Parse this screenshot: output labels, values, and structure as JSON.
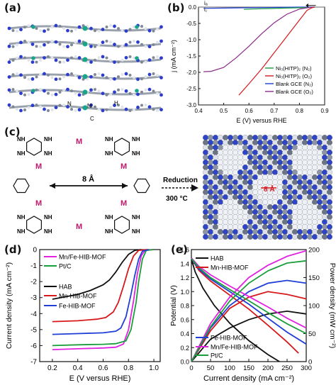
{
  "panel_labels": {
    "a": "(a)",
    "b": "(b)",
    "c": "(c)",
    "d": "(d)",
    "e": "(e)"
  },
  "panel_a": {
    "atoms": {
      "ni": "Ni",
      "n": "N",
      "h": "H",
      "c": "C"
    }
  },
  "panel_c": {
    "reduction_label": "Reduction",
    "temperature_label": "300 °C",
    "pore_size_label": "8 Å",
    "mof_pore_label": "8 Å",
    "metal_label": "M",
    "amine_label": "NH"
  },
  "colors": {
    "black": "#111111",
    "red": "#d7191c",
    "blue": "#1f3fd6",
    "magenta": "#e023e0",
    "green": "#1a9e3c",
    "teal": "#1a8c7a",
    "purple": "#8a2a8a",
    "navy": "#1a237e",
    "metal": "#c2186c"
  },
  "chart_data": [
    {
      "id": "b",
      "type": "line",
      "xlabel": "E (V) versus RHE",
      "ylabel": "j (mA cm⁻²)",
      "xlim": [
        0.4,
        0.9
      ],
      "ylim": [
        -3.0,
        0.0
      ],
      "xticks": [
        "0.4",
        "0.5",
        "0.6",
        "0.7",
        "0.8",
        "0.9"
      ],
      "yticks": [
        "0.0",
        "-0.5",
        "-1.0",
        "-1.5",
        "-2.0",
        "-2.5",
        "-3.0"
      ],
      "annotations": {
        "ia": "iₐ",
        "ic": "i꜀"
      },
      "legend_position": "bottom-right",
      "series": [
        {
          "name": "Ni₃(HITP)₂ (N₂)",
          "color": "#1a9e3c",
          "x": [
            0.58,
            0.65,
            0.75,
            0.84,
            0.86
          ],
          "y": [
            -0.07,
            -0.05,
            -0.03,
            -0.01,
            0.0
          ]
        },
        {
          "name": "Ni₃(HITP)₂ (O₂)",
          "color": "#d7191c",
          "x": [
            0.56,
            0.6,
            0.65,
            0.7,
            0.75,
            0.8,
            0.83,
            0.85,
            0.86
          ],
          "y": [
            -2.7,
            -2.35,
            -1.9,
            -1.4,
            -0.9,
            -0.4,
            -0.1,
            -0.02,
            0.0
          ]
        },
        {
          "name": "Blank GCE (N₂)",
          "color": "#1f3fd6",
          "x": [
            0.42,
            0.5,
            0.6,
            0.7,
            0.8,
            0.86
          ],
          "y": [
            -0.04,
            -0.03,
            -0.02,
            -0.01,
            0.0,
            0.0
          ]
        },
        {
          "name": "Blank GCE (O₂)",
          "color": "#8a2a8a",
          "x": [
            0.42,
            0.45,
            0.5,
            0.55,
            0.6,
            0.65,
            0.7,
            0.75,
            0.8,
            0.84,
            0.86
          ],
          "y": [
            -1.98,
            -1.97,
            -1.85,
            -1.55,
            -1.2,
            -0.82,
            -0.48,
            -0.22,
            -0.06,
            -0.01,
            0.0
          ]
        }
      ]
    },
    {
      "id": "d",
      "type": "line",
      "xlabel": "E (V versus RHE)",
      "ylabel": "Current density (mA cm⁻²)",
      "xlim": [
        0.1,
        1.05
      ],
      "ylim": [
        -7,
        0
      ],
      "xticks": [
        "0.2",
        "0.4",
        "0.6",
        "0.8",
        "1.0"
      ],
      "yticks": [
        "0",
        "-1",
        "-2",
        "-3",
        "-4",
        "-5",
        "-6",
        "-7"
      ],
      "legend_position": "top-left and middle-left",
      "series": [
        {
          "name": "Mn/Fe-HIB-MOF",
          "color": "#e023e0",
          "x": [
            0.2,
            0.4,
            0.6,
            0.7,
            0.76,
            0.8,
            0.84,
            0.87,
            0.9,
            0.93,
            1.0
          ],
          "y": [
            -6.25,
            -6.2,
            -6.15,
            -6.1,
            -5.9,
            -5.0,
            -3.2,
            -1.5,
            -0.4,
            -0.05,
            0.0
          ]
        },
        {
          "name": "Pt/C",
          "color": "#1a9e3c",
          "x": [
            0.2,
            0.4,
            0.6,
            0.7,
            0.78,
            0.82,
            0.86,
            0.88,
            0.91,
            0.94,
            1.0
          ],
          "y": [
            -6.0,
            -5.95,
            -5.92,
            -5.88,
            -5.7,
            -5.0,
            -3.3,
            -2.0,
            -0.6,
            -0.05,
            0.0
          ]
        },
        {
          "name": "HAB",
          "color": "#111111",
          "x": [
            0.2,
            0.3,
            0.4,
            0.5,
            0.6,
            0.65,
            0.7,
            0.75,
            0.8,
            0.85,
            0.9
          ],
          "y": [
            -3.1,
            -2.95,
            -2.8,
            -2.55,
            -2.2,
            -1.9,
            -1.4,
            -0.8,
            -0.3,
            -0.05,
            0.0
          ]
        },
        {
          "name": "Mn-HIB-MOF",
          "color": "#d7191c",
          "x": [
            0.2,
            0.4,
            0.55,
            0.62,
            0.68,
            0.72,
            0.76,
            0.8,
            0.84,
            0.88,
            0.95
          ],
          "y": [
            -4.5,
            -4.45,
            -4.35,
            -4.25,
            -3.9,
            -3.3,
            -2.3,
            -1.2,
            -0.4,
            -0.05,
            0.0
          ]
        },
        {
          "name": "Fe-HIB-MOF",
          "color": "#1f3fd6",
          "x": [
            0.2,
            0.4,
            0.6,
            0.7,
            0.74,
            0.78,
            0.82,
            0.85,
            0.88,
            0.91,
            0.96
          ],
          "y": [
            -5.3,
            -5.25,
            -5.2,
            -5.1,
            -4.9,
            -4.2,
            -2.8,
            -1.6,
            -0.6,
            -0.1,
            0.0
          ]
        }
      ]
    },
    {
      "id": "e",
      "type": "line",
      "xlabel": "Current density (mA cm⁻²)",
      "ylabel": "Potential (V)",
      "y2label": "Power density (mW cm⁻²)",
      "xlim": [
        0,
        300
      ],
      "ylim": [
        0,
        1.6
      ],
      "y2lim": [
        0,
        200
      ],
      "xticks": [
        "0",
        "50",
        "100",
        "150",
        "200",
        "250",
        "300"
      ],
      "yticks": [
        "0.0",
        "0.2",
        "0.4",
        "0.6",
        "0.8",
        "1.0",
        "1.2",
        "1.4",
        "1.6"
      ],
      "y2ticks": [
        "0",
        "50",
        "100",
        "150",
        "200"
      ],
      "legend_position": "top-left and bottom-left",
      "series": [
        {
          "name": "HAB",
          "color": "#111111",
          "kind": "polarization",
          "x": [
            0,
            10,
            30,
            60,
            100,
            150,
            200,
            230
          ],
          "y": [
            1.46,
            1.28,
            1.05,
            0.8,
            0.55,
            0.3,
            0.1,
            0.0
          ]
        },
        {
          "name": "HAB",
          "color": "#111111",
          "kind": "power",
          "x": [
            0,
            50,
            100,
            150,
            200,
            250,
            300
          ],
          "y2": [
            0,
            40,
            60,
            75,
            85,
            90,
            85
          ]
        },
        {
          "name": "Mn-HIB-MOF",
          "color": "#d7191c",
          "kind": "polarization",
          "x": [
            0,
            20,
            50,
            100,
            150,
            200,
            250,
            280
          ],
          "y": [
            1.47,
            1.3,
            1.15,
            0.95,
            0.75,
            0.52,
            0.28,
            0.12
          ]
        },
        {
          "name": "Mn-HIB-MOF",
          "color": "#d7191c",
          "kind": "power",
          "x": [
            0,
            50,
            100,
            150,
            200,
            250,
            300
          ],
          "y2": [
            0,
            55,
            95,
            115,
            125,
            120,
            112
          ]
        },
        {
          "name": "Fe-HIB-MOF",
          "color": "#1f3fd6",
          "kind": "polarization",
          "x": [
            0,
            20,
            50,
            100,
            150,
            200,
            250,
            300
          ],
          "y": [
            1.47,
            1.32,
            1.18,
            1.0,
            0.82,
            0.62,
            0.42,
            0.25
          ]
        },
        {
          "name": "Fe-HIB-MOF",
          "color": "#1f3fd6",
          "kind": "power",
          "x": [
            0,
            50,
            100,
            150,
            200,
            250,
            300
          ],
          "y2": [
            0,
            60,
            100,
            125,
            140,
            145,
            140
          ]
        },
        {
          "name": "Mn/Fe-HIB-MOF",
          "color": "#e023e0",
          "kind": "polarization",
          "x": [
            0,
            20,
            50,
            100,
            150,
            200,
            250,
            300
          ],
          "y": [
            1.48,
            1.36,
            1.24,
            1.08,
            0.93,
            0.78,
            0.62,
            0.48
          ]
        },
        {
          "name": "Mn/Fe-HIB-MOF",
          "color": "#e023e0",
          "kind": "power",
          "x": [
            0,
            50,
            100,
            150,
            200,
            250,
            300
          ],
          "y2": [
            0,
            68,
            115,
            150,
            172,
            188,
            198
          ]
        },
        {
          "name": "Pt/C",
          "color": "#1a9e3c",
          "kind": "polarization",
          "x": [
            0,
            20,
            50,
            100,
            150,
            200,
            250,
            300
          ],
          "y": [
            1.47,
            1.34,
            1.2,
            1.03,
            0.87,
            0.7,
            0.54,
            0.4
          ]
        },
        {
          "name": "Pt/C",
          "color": "#1a9e3c",
          "kind": "power",
          "x": [
            0,
            50,
            100,
            150,
            200,
            250,
            300
          ],
          "y2": [
            0,
            62,
            108,
            140,
            162,
            176,
            180
          ]
        }
      ]
    }
  ]
}
